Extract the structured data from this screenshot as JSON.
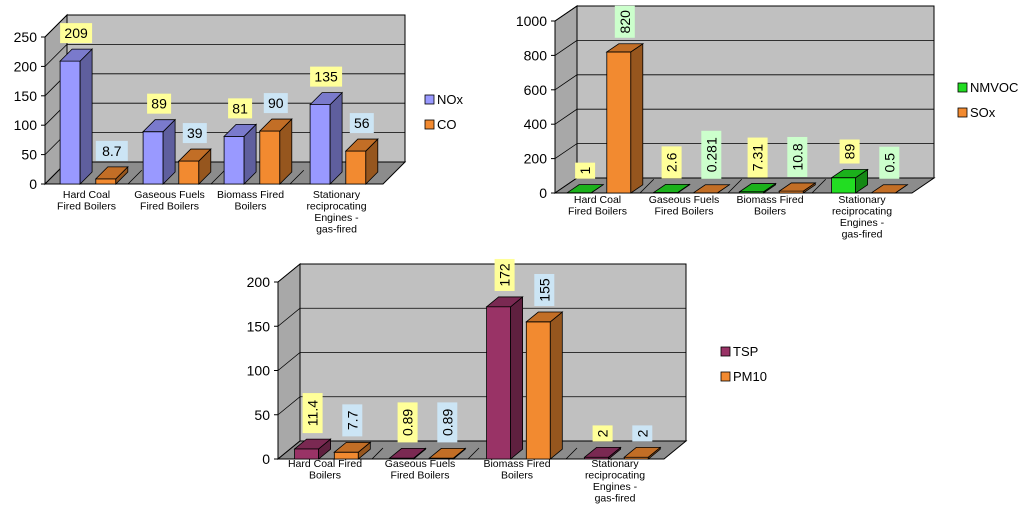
{
  "chart_data": [
    {
      "type": "bar",
      "categories": [
        "Hard Coal Fired Boilers",
        "Gaseous Fuels Fired Boilers",
        "Biomass Fired Boilers",
        "Stationary reciprocating Engines - gas-fired"
      ],
      "series": [
        {
          "name": "NOx",
          "values": [
            209,
            89,
            81,
            135
          ],
          "labels": [
            "209",
            "89",
            "81",
            "135"
          ],
          "color": "#9999FF"
        },
        {
          "name": "CO",
          "values": [
            8.7,
            39,
            90,
            56
          ],
          "labels": [
            "8.7",
            "39",
            "90",
            "56"
          ],
          "color": "#F28A30"
        }
      ],
      "ylim": [
        0,
        250
      ],
      "yticks": [
        "0",
        "50",
        "100",
        "150",
        "200",
        "250"
      ],
      "legend_position": "right",
      "grid": true,
      "three_d": true
    },
    {
      "type": "bar",
      "categories": [
        "Hard Coal Fired Boilers",
        "Gaseous Fuels Fired Boilers",
        "Biomass Fired Boilers",
        "Stationary reciprocating Engines - gas-fired"
      ],
      "series": [
        {
          "name": "NMVOC",
          "values": [
            1,
            2.6,
            7.31,
            89
          ],
          "labels": [
            "1",
            "2.6",
            "7.31",
            "89"
          ],
          "color": "#22DD22"
        },
        {
          "name": "SOx",
          "values": [
            820,
            0.281,
            10.8,
            0.5
          ],
          "labels": [
            "820",
            "0.281",
            "10.8",
            "0.5"
          ],
          "color": "#F28A30"
        }
      ],
      "ylim": [
        0,
        1000
      ],
      "yticks": [
        "0",
        "200",
        "400",
        "600",
        "800",
        "1000"
      ],
      "legend_position": "right",
      "grid": true,
      "three_d": true
    },
    {
      "type": "bar",
      "categories": [
        "Hard Coal Fired Boilers",
        "Gaseous Fuels Fired Boilers",
        "Biomass Fired Boilers",
        "Stationary reciprocating Engines - gas-fired"
      ],
      "series": [
        {
          "name": "TSP",
          "values": [
            11.4,
            0.89,
            172,
            2
          ],
          "labels": [
            "11.4",
            "0.89",
            "172",
            "2"
          ],
          "color": "#993366"
        },
        {
          "name": "PM10",
          "values": [
            7.7,
            0.89,
            155,
            2
          ],
          "labels": [
            "7.7",
            "0.89",
            "155",
            "2"
          ],
          "color": "#F28A30"
        }
      ],
      "ylim": [
        0,
        200
      ],
      "yticks": [
        "0",
        "50",
        "100",
        "150",
        "200"
      ],
      "legend_position": "right",
      "grid": true,
      "three_d": true
    }
  ]
}
